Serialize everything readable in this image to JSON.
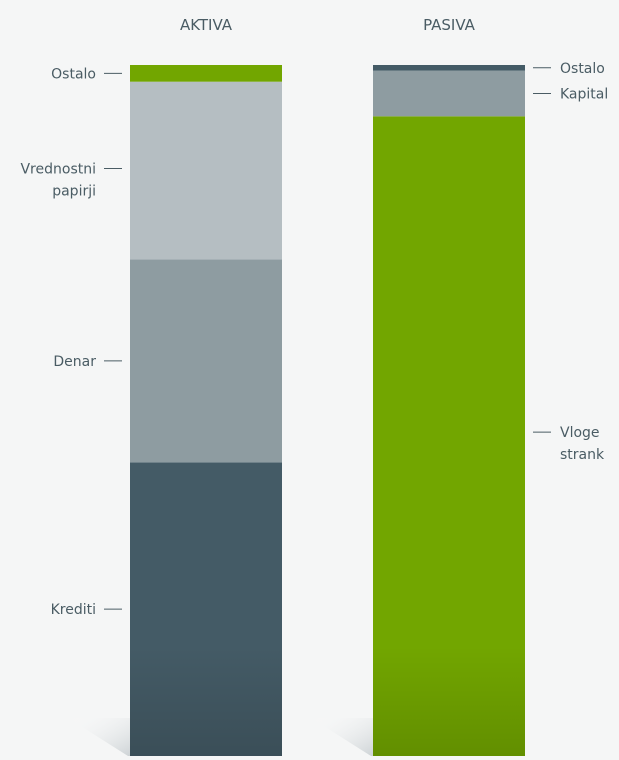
{
  "chart_data": {
    "type": "bar",
    "stacked": true,
    "normalized_to_100": true,
    "grid": false,
    "legend": "none",
    "axes_visible": false,
    "columns": [
      {
        "id": "aktiva",
        "title": "AKTIVA",
        "label_side": "left",
        "segments": [
          {
            "label": "Krediti",
            "value": 40.5,
            "color": "#445b66"
          },
          {
            "label": "Denar",
            "value": 28.0,
            "color": "#8e9ca1"
          },
          {
            "label": "Vrednostni papirji",
            "value": 24.5,
            "color": "#b5bec2"
          },
          {
            "label": "Ostalo",
            "value": 2.3,
            "color": "#72a600"
          }
        ]
      },
      {
        "id": "pasiva",
        "title": "PASIVA",
        "label_side": "right",
        "segments": [
          {
            "label": "Vloge strank",
            "value": 91.0,
            "color": "#72a600"
          },
          {
            "label": "Kapital",
            "value": 6.5,
            "color": "#8e9ca1"
          },
          {
            "label": "Ostalo",
            "value": 0.8,
            "color": "#445b66"
          }
        ]
      }
    ]
  }
}
